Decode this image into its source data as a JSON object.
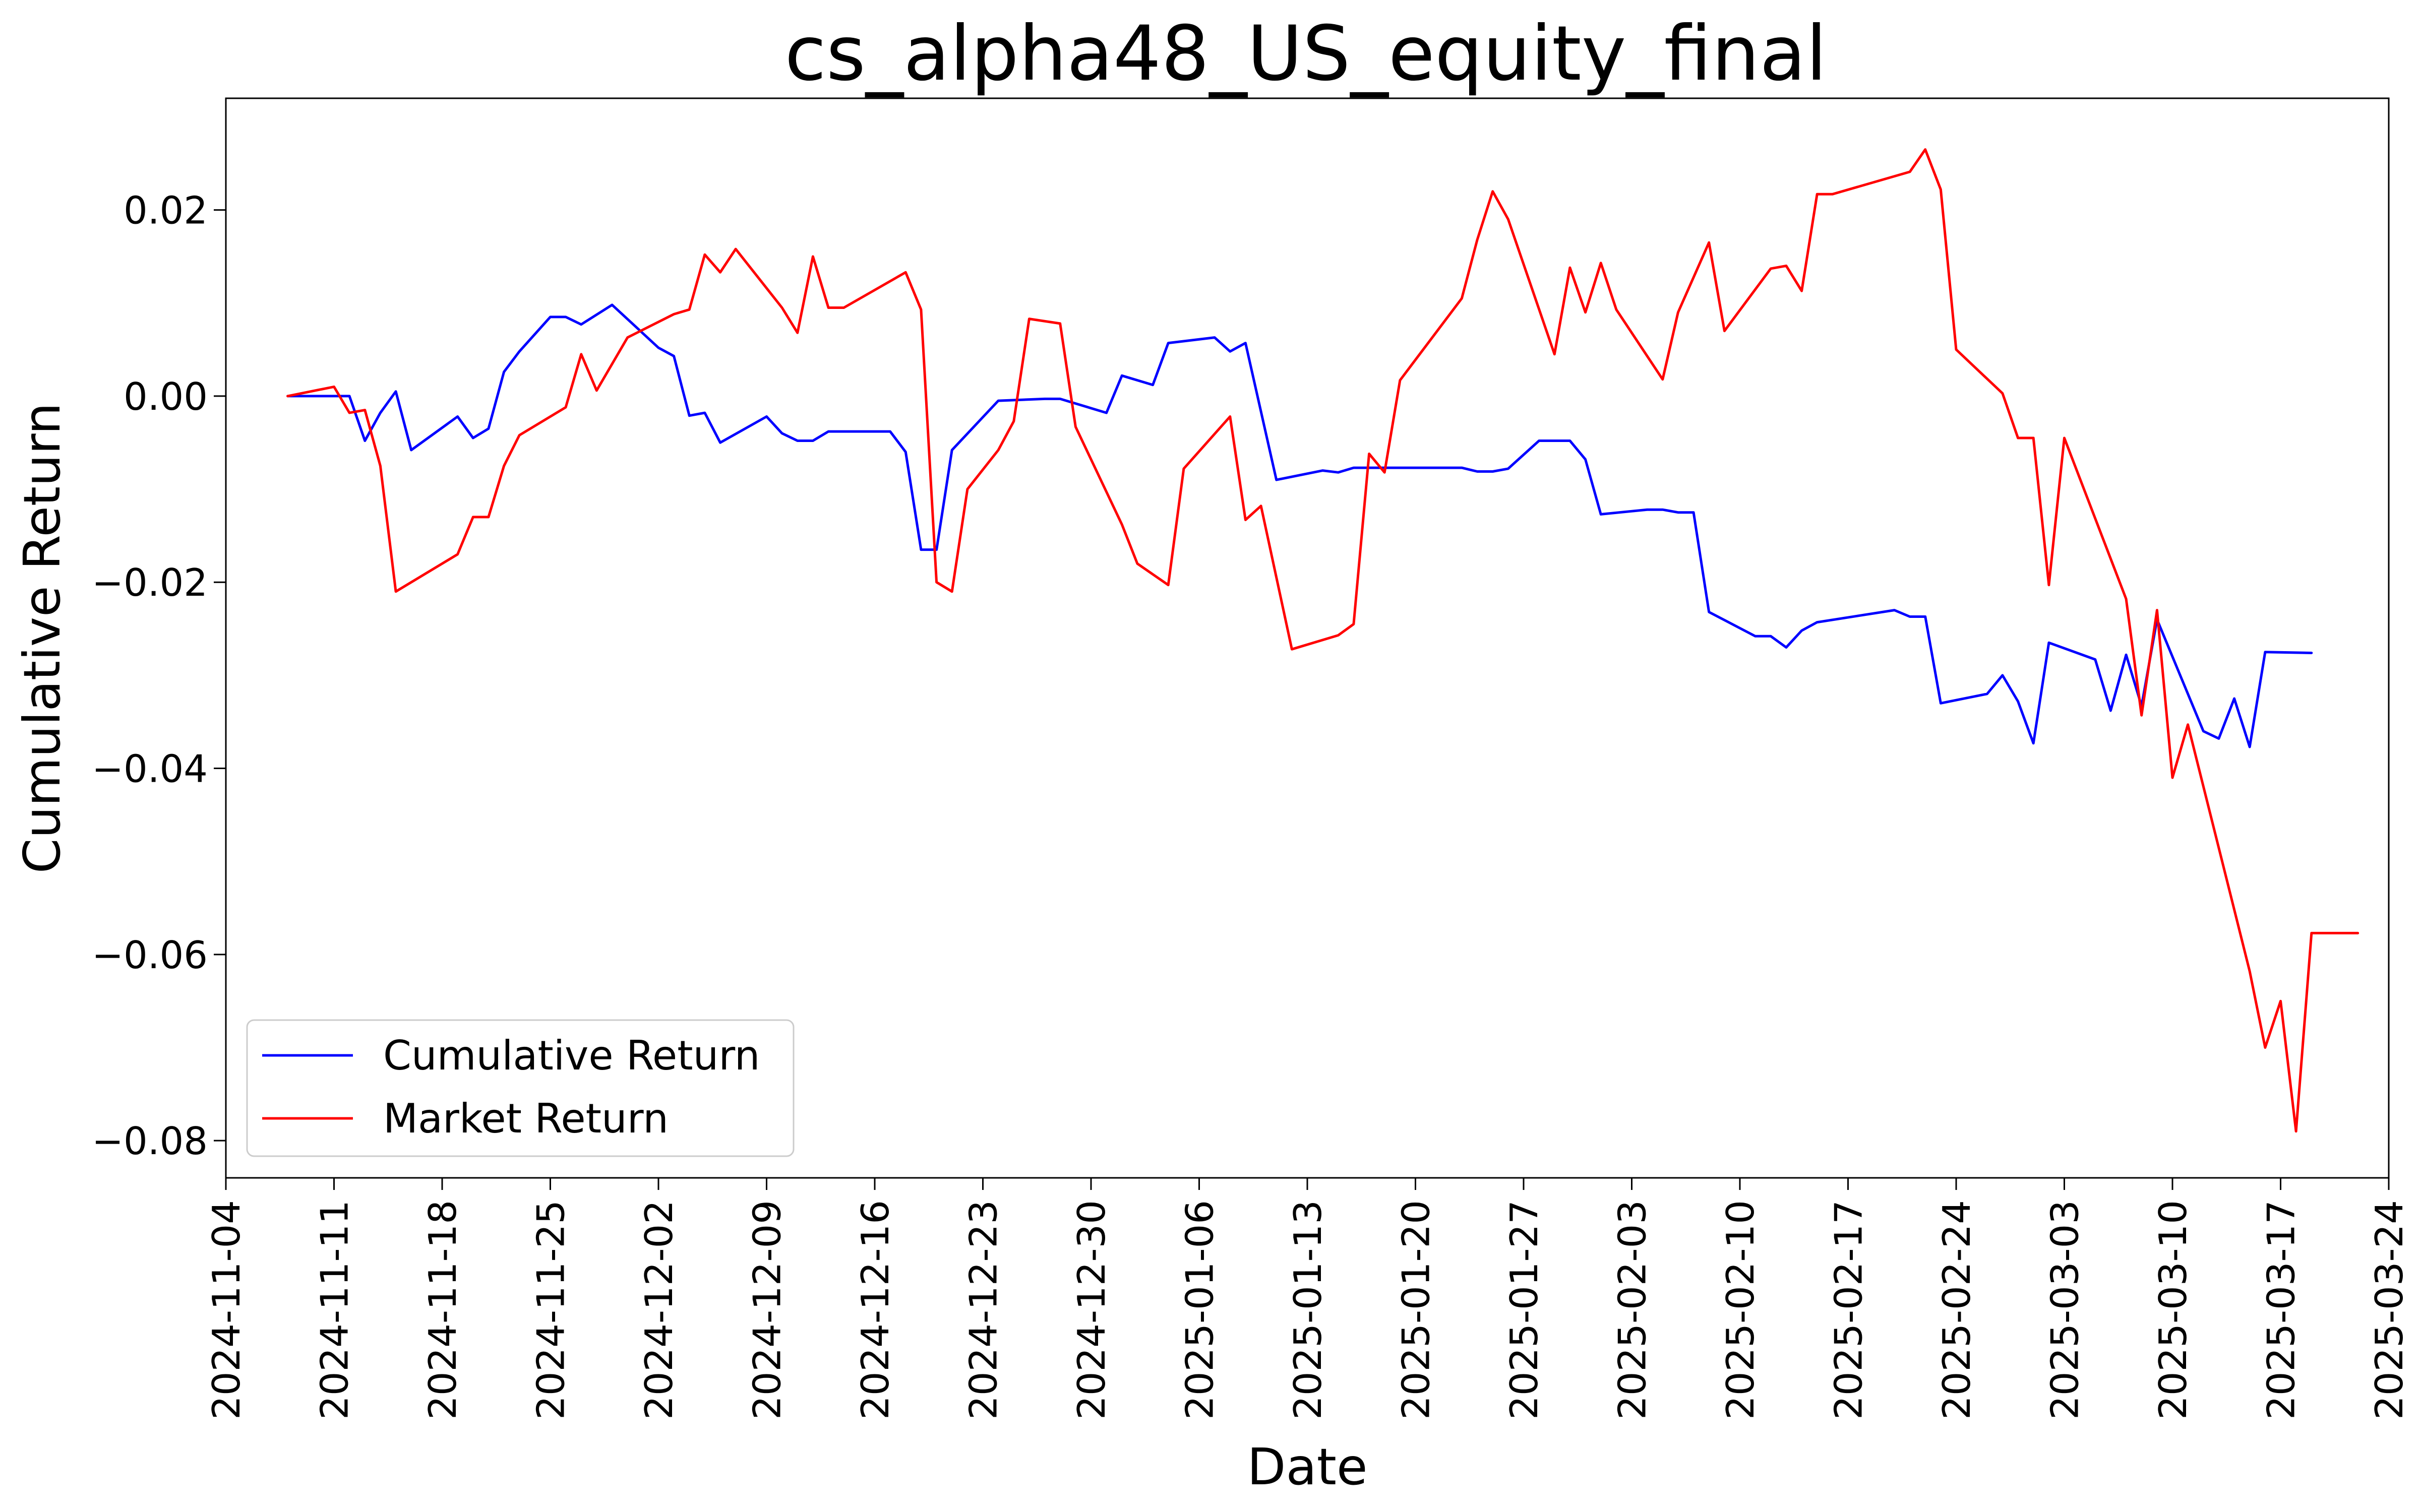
{
  "chart_data": {
    "type": "line",
    "title": "cs_alpha48_US_equity_final",
    "xlabel": "Date",
    "ylabel": "Cumulative Return",
    "x_axis": {
      "type": "date",
      "range": [
        "2024-11-04",
        "2025-03-24"
      ],
      "tick_labels": [
        "2024-11-04",
        "2024-11-11",
        "2024-11-18",
        "2024-11-25",
        "2024-12-02",
        "2024-12-09",
        "2024-12-16",
        "2024-12-23",
        "2024-12-30",
        "2025-01-06",
        "2025-01-13",
        "2025-01-20",
        "2025-01-27",
        "2025-02-03",
        "2025-02-10",
        "2025-02-17",
        "2025-02-24",
        "2025-03-03",
        "2025-03-10",
        "2025-03-17",
        "2025-03-24"
      ]
    },
    "y_axis": {
      "range": [
        -0.084,
        0.032
      ],
      "tick_values": [
        0.02,
        0.0,
        -0.02,
        -0.04,
        -0.06,
        -0.08
      ],
      "tick_labels": [
        "0.02",
        "0.00",
        "−0.02",
        "−0.04",
        "−0.06",
        "−0.08"
      ]
    },
    "grid": false,
    "legend_position": "lower-left",
    "series": [
      {
        "name": "Cumulative Return",
        "color": "#0000ff",
        "points": [
          [
            "2024-11-08",
            0.0
          ],
          [
            "2024-11-11",
            0.0
          ],
          [
            "2024-11-12",
            0.0
          ],
          [
            "2024-11-13",
            -0.0048
          ],
          [
            "2024-11-14",
            -0.0018
          ],
          [
            "2024-11-15",
            0.0005
          ],
          [
            "2024-11-16",
            -0.0058
          ],
          [
            "2024-11-19",
            -0.0022
          ],
          [
            "2024-11-20",
            -0.0045
          ],
          [
            "2024-11-21",
            -0.0035
          ],
          [
            "2024-11-22",
            0.0026
          ],
          [
            "2024-11-23",
            0.0048
          ],
          [
            "2024-11-25",
            0.0085
          ],
          [
            "2024-11-26",
            0.0085
          ],
          [
            "2024-11-27",
            0.0077
          ],
          [
            "2024-11-29",
            0.0098
          ],
          [
            "2024-12-02",
            0.0052
          ],
          [
            "2024-12-03",
            0.0043
          ],
          [
            "2024-12-04",
            -0.0021
          ],
          [
            "2024-12-05",
            -0.0018
          ],
          [
            "2024-12-06",
            -0.005
          ],
          [
            "2024-12-09",
            -0.0022
          ],
          [
            "2024-12-10",
            -0.004
          ],
          [
            "2024-12-11",
            -0.0048
          ],
          [
            "2024-12-12",
            -0.0048
          ],
          [
            "2024-12-13",
            -0.0038
          ],
          [
            "2024-12-16",
            -0.0038
          ],
          [
            "2024-12-17",
            -0.0038
          ],
          [
            "2024-12-18",
            -0.006
          ],
          [
            "2024-12-19",
            -0.0165
          ],
          [
            "2024-12-20",
            -0.0165
          ],
          [
            "2024-12-21",
            -0.0058
          ],
          [
            "2024-12-24",
            -0.0005
          ],
          [
            "2024-12-27",
            -0.0003
          ],
          [
            "2024-12-28",
            -0.0003
          ],
          [
            "2024-12-31",
            -0.0018
          ],
          [
            "2025-01-01",
            0.0022
          ],
          [
            "2025-01-03",
            0.0012
          ],
          [
            "2025-01-04",
            0.0057
          ],
          [
            "2025-01-07",
            0.0063
          ],
          [
            "2025-01-08",
            0.0048
          ],
          [
            "2025-01-09",
            0.0057
          ],
          [
            "2025-01-11",
            -0.009
          ],
          [
            "2025-01-14",
            -0.008
          ],
          [
            "2025-01-15",
            -0.0082
          ],
          [
            "2025-01-16",
            -0.0077
          ],
          [
            "2025-01-17",
            -0.0077
          ],
          [
            "2025-01-23",
            -0.0077
          ],
          [
            "2025-01-24",
            -0.0081
          ],
          [
            "2025-01-25",
            -0.0081
          ],
          [
            "2025-01-26",
            -0.0078
          ],
          [
            "2025-01-28",
            -0.0048
          ],
          [
            "2025-01-30",
            -0.0048
          ],
          [
            "2025-01-31",
            -0.0068
          ],
          [
            "2025-02-01",
            -0.0127
          ],
          [
            "2025-02-04",
            -0.0122
          ],
          [
            "2025-02-05",
            -0.0122
          ],
          [
            "2025-02-06",
            -0.0125
          ],
          [
            "2025-02-07",
            -0.0125
          ],
          [
            "2025-02-08",
            -0.0232
          ],
          [
            "2025-02-11",
            -0.0258
          ],
          [
            "2025-02-12",
            -0.0258
          ],
          [
            "2025-02-13",
            -0.027
          ],
          [
            "2025-02-14",
            -0.0252
          ],
          [
            "2025-02-15",
            -0.0243
          ],
          [
            "2025-02-20",
            -0.023
          ],
          [
            "2025-02-21",
            -0.0237
          ],
          [
            "2025-02-22",
            -0.0237
          ],
          [
            "2025-02-23",
            -0.033
          ],
          [
            "2025-02-26",
            -0.032
          ],
          [
            "2025-02-27",
            -0.03
          ],
          [
            "2025-02-28",
            -0.0328
          ],
          [
            "2025-03-01",
            -0.0373
          ],
          [
            "2025-03-02",
            -0.0265
          ],
          [
            "2025-03-05",
            -0.0283
          ],
          [
            "2025-03-06",
            -0.0338
          ],
          [
            "2025-03-07",
            -0.0278
          ],
          [
            "2025-03-08",
            -0.0333
          ],
          [
            "2025-03-09",
            -0.024
          ],
          [
            "2025-03-12",
            -0.036
          ],
          [
            "2025-03-13",
            -0.0368
          ],
          [
            "2025-03-14",
            -0.0325
          ],
          [
            "2025-03-15",
            -0.0377
          ],
          [
            "2025-03-16",
            -0.0275
          ],
          [
            "2025-03-19",
            -0.0276
          ]
        ]
      },
      {
        "name": "Market Return",
        "color": "#ff0000",
        "points": [
          [
            "2024-11-08",
            0.0
          ],
          [
            "2024-11-11",
            0.001
          ],
          [
            "2024-11-12",
            -0.0018
          ],
          [
            "2024-11-13",
            -0.0015
          ],
          [
            "2024-11-14",
            -0.0075
          ],
          [
            "2024-11-15",
            -0.021
          ],
          [
            "2024-11-19",
            -0.017
          ],
          [
            "2024-11-20",
            -0.013
          ],
          [
            "2024-11-21",
            -0.013
          ],
          [
            "2024-11-22",
            -0.0075
          ],
          [
            "2024-11-23",
            -0.0042
          ],
          [
            "2024-11-26",
            -0.0012
          ],
          [
            "2024-11-27",
            0.0045
          ],
          [
            "2024-11-28",
            0.0006
          ],
          [
            "2024-11-30",
            0.0063
          ],
          [
            "2024-12-03",
            0.0088
          ],
          [
            "2024-12-04",
            0.0093
          ],
          [
            "2024-12-05",
            0.0152
          ],
          [
            "2024-12-06",
            0.0133
          ],
          [
            "2024-12-07",
            0.0158
          ],
          [
            "2024-12-10",
            0.0095
          ],
          [
            "2024-12-11",
            0.0068
          ],
          [
            "2024-12-12",
            0.015
          ],
          [
            "2024-12-13",
            0.0095
          ],
          [
            "2024-12-14",
            0.0095
          ],
          [
            "2024-12-18",
            0.0133
          ],
          [
            "2024-12-19",
            0.0093
          ],
          [
            "2024-12-20",
            -0.02
          ],
          [
            "2024-12-21",
            -0.021
          ],
          [
            "2024-12-22",
            -0.01
          ],
          [
            "2024-12-24",
            -0.0058
          ],
          [
            "2024-12-25",
            -0.0027
          ],
          [
            "2024-12-26",
            0.0083
          ],
          [
            "2024-12-28",
            0.0078
          ],
          [
            "2024-12-29",
            -0.0033
          ],
          [
            "2025-01-01",
            -0.0138
          ],
          [
            "2025-01-02",
            -0.018
          ],
          [
            "2025-01-04",
            -0.0203
          ],
          [
            "2025-01-05",
            -0.0078
          ],
          [
            "2025-01-08",
            -0.0022
          ],
          [
            "2025-01-09",
            -0.0133
          ],
          [
            "2025-01-10",
            -0.0118
          ],
          [
            "2025-01-12",
            -0.0272
          ],
          [
            "2025-01-15",
            -0.0257
          ],
          [
            "2025-01-16",
            -0.0245
          ],
          [
            "2025-01-17",
            -0.0062
          ],
          [
            "2025-01-18",
            -0.0082
          ],
          [
            "2025-01-19",
            0.0017
          ],
          [
            "2025-01-23",
            0.0105
          ],
          [
            "2025-01-24",
            0.0168
          ],
          [
            "2025-01-25",
            0.022
          ],
          [
            "2025-01-26",
            0.019
          ],
          [
            "2025-01-29",
            0.0045
          ],
          [
            "2025-01-30",
            0.0138
          ],
          [
            "2025-01-31",
            0.009
          ],
          [
            "2025-02-01",
            0.0143
          ],
          [
            "2025-02-02",
            0.0093
          ],
          [
            "2025-02-05",
            0.0018
          ],
          [
            "2025-02-06",
            0.009
          ],
          [
            "2025-02-08",
            0.0165
          ],
          [
            "2025-02-09",
            0.007
          ],
          [
            "2025-02-12",
            0.0137
          ],
          [
            "2025-02-13",
            0.014
          ],
          [
            "2025-02-14",
            0.0113
          ],
          [
            "2025-02-15",
            0.0217
          ],
          [
            "2025-02-16",
            0.0217
          ],
          [
            "2025-02-21",
            0.0241
          ],
          [
            "2025-02-22",
            0.0265
          ],
          [
            "2025-02-23",
            0.0222
          ],
          [
            "2025-02-24",
            0.005
          ],
          [
            "2025-02-27",
            0.0003
          ],
          [
            "2025-02-28",
            -0.0045
          ],
          [
            "2025-03-01",
            -0.0045
          ],
          [
            "2025-03-02",
            -0.0203
          ],
          [
            "2025-03-03",
            -0.0045
          ],
          [
            "2025-03-07",
            -0.0218
          ],
          [
            "2025-03-08",
            -0.0343
          ],
          [
            "2025-03-09",
            -0.023
          ],
          [
            "2025-03-10",
            -0.041
          ],
          [
            "2025-03-11",
            -0.0353
          ],
          [
            "2025-03-15",
            -0.0618
          ],
          [
            "2025-03-16",
            -0.07
          ],
          [
            "2025-03-17",
            -0.065
          ],
          [
            "2025-03-18",
            -0.079
          ],
          [
            "2025-03-19",
            -0.0577
          ],
          [
            "2025-03-22",
            -0.0577
          ]
        ]
      }
    ]
  }
}
